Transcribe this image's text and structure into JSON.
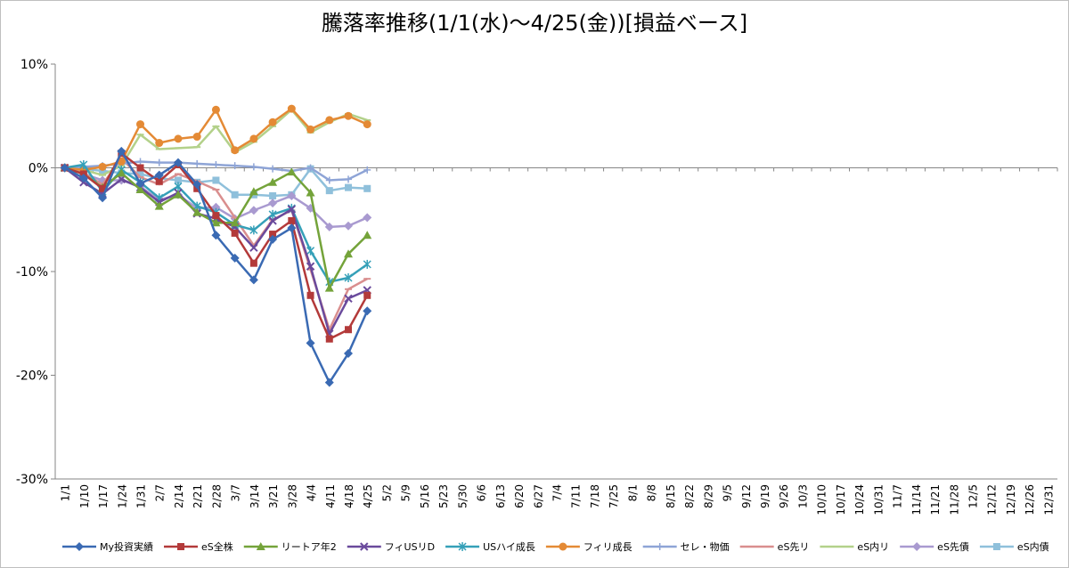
{
  "chart_data": {
    "type": "line",
    "title": "騰落率推移(1/1(水)～4/25(金))[損益ベース]",
    "ylim": [
      -30,
      10
    ],
    "y_ticks": [
      10,
      0,
      -10,
      -20,
      -30
    ],
    "y_tick_labels": [
      "10%",
      "0%",
      "-10%",
      "-20%",
      "-30%"
    ],
    "x_tick_labels": [
      "1/1",
      "1/10",
      "1/17",
      "1/24",
      "1/31",
      "2/7",
      "2/14",
      "2/21",
      "2/28",
      "3/7",
      "3/14",
      "3/21",
      "3/28",
      "4/4",
      "4/11",
      "4/18",
      "4/25",
      "5/2",
      "5/9",
      "5/16",
      "5/23",
      "5/30",
      "6/6",
      "6/13",
      "6/20",
      "6/27",
      "7/4",
      "7/11",
      "7/18",
      "7/25",
      "8/1",
      "8/8",
      "8/15",
      "8/22",
      "8/29",
      "9/5",
      "9/12",
      "9/19",
      "9/26",
      "10/3",
      "10/10",
      "10/17",
      "10/24",
      "10/31",
      "11/7",
      "11/14",
      "11/21",
      "11/28",
      "12/5",
      "12/12",
      "12/19",
      "12/26",
      "12/31"
    ],
    "grid": "horizontal-zero-line",
    "legend": "bottom",
    "x_index": [
      0,
      1,
      2,
      3,
      4,
      5,
      6,
      7,
      8,
      9,
      10,
      11,
      12,
      13,
      14,
      15,
      16
    ],
    "series": [
      {
        "name": "My投資実績",
        "color": "#3a6ab3",
        "marker": "diamond",
        "values": [
          0,
          -1.0,
          -2.9,
          1.6,
          -1.5,
          -0.7,
          0.5,
          -1.6,
          -6.5,
          -8.7,
          -10.8,
          -6.9,
          -5.8,
          -16.9,
          -20.7,
          -17.9,
          -13.8
        ]
      },
      {
        "name": "eS全株",
        "color": "#b33a3a",
        "marker": "square",
        "values": [
          0,
          -0.6,
          -2.0,
          1.4,
          0.0,
          -1.3,
          0.3,
          -2.0,
          -4.6,
          -6.3,
          -9.2,
          -6.4,
          -5.1,
          -12.3,
          -16.5,
          -15.6,
          -12.3
        ]
      },
      {
        "name": "リートア年2",
        "color": "#74a33a",
        "marker": "triangle",
        "values": [
          0,
          -0.6,
          -1.9,
          -0.5,
          -2.1,
          -3.7,
          -2.6,
          -4.3,
          -5.3,
          -5.3,
          -2.3,
          -1.4,
          -0.4,
          -2.4,
          -11.6,
          -8.3,
          -6.5
        ]
      },
      {
        "name": "フィUSリD",
        "color": "#6a4a9c",
        "marker": "x",
        "values": [
          0,
          -1.4,
          -2.5,
          -1.1,
          -1.9,
          -3.3,
          -2.4,
          -4.4,
          -4.9,
          -5.7,
          -7.7,
          -5.1,
          -4.0,
          -9.5,
          -16.0,
          -12.6,
          -11.8
        ]
      },
      {
        "name": "USハイ成長",
        "color": "#35a0b8",
        "marker": "asterisk",
        "values": [
          0,
          0.3,
          -2.3,
          -0.2,
          -1.4,
          -2.9,
          -1.8,
          -3.7,
          -4.3,
          -5.5,
          -6.0,
          -4.5,
          -3.9,
          -8.0,
          -11.0,
          -10.6,
          -9.3
        ]
      },
      {
        "name": "フィリ成長",
        "color": "#e48a35",
        "marker": "circle",
        "values": [
          0,
          -0.2,
          0.1,
          0.6,
          4.2,
          2.4,
          2.8,
          3.0,
          5.6,
          1.7,
          2.8,
          4.4,
          5.7,
          3.7,
          4.6,
          5.0,
          4.2
        ]
      },
      {
        "name": "セレ・物価",
        "color": "#8ea4d6",
        "marker": "plus",
        "values": [
          0,
          0.1,
          0.2,
          0.4,
          0.6,
          0.5,
          0.5,
          0.4,
          0.3,
          0.2,
          0.1,
          -0.1,
          -0.3,
          0.0,
          -1.2,
          -1.1,
          -0.2
        ]
      },
      {
        "name": "eS先リ",
        "color": "#d98e8e",
        "marker": "dash",
        "values": [
          0,
          -0.5,
          -1.6,
          0.9,
          -0.9,
          -1.6,
          -0.6,
          -1.3,
          -2.1,
          -4.8,
          -7.5,
          -5.0,
          -4.1,
          -9.8,
          -15.6,
          -11.7,
          -10.7
        ]
      },
      {
        "name": "eS内リ",
        "color": "#b3d18a",
        "marker": "dash",
        "values": [
          0,
          -0.2,
          -0.7,
          0.2,
          3.2,
          1.8,
          1.9,
          2.0,
          4.0,
          1.5,
          2.5,
          4.0,
          5.6,
          3.4,
          4.4,
          5.2,
          4.6
        ]
      },
      {
        "name": "eS先債",
        "color": "#a99ad0",
        "marker": "diamond",
        "values": [
          0,
          -0.6,
          -1.2,
          -1.2,
          -1.8,
          -3.1,
          -2.6,
          -3.9,
          -3.8,
          -4.9,
          -4.1,
          -3.4,
          -2.7,
          -3.9,
          -5.7,
          -5.6,
          -4.8
        ]
      },
      {
        "name": "eS内債",
        "color": "#8fc0db",
        "marker": "square",
        "values": [
          0,
          -0.1,
          -0.3,
          -0.5,
          -0.6,
          -1.0,
          -1.2,
          -1.4,
          -1.2,
          -2.6,
          -2.6,
          -2.7,
          -2.6,
          -0.1,
          -2.2,
          -1.9,
          -2.0
        ]
      }
    ]
  }
}
